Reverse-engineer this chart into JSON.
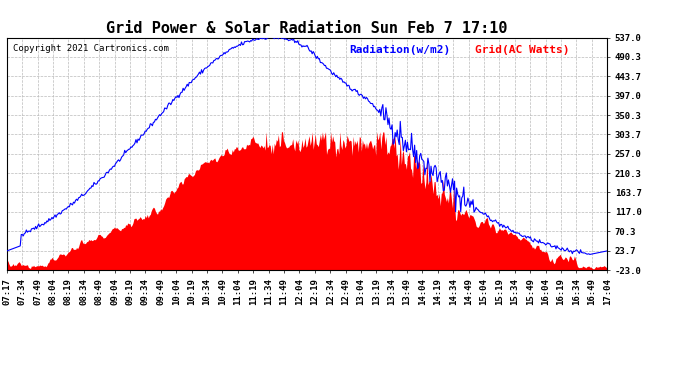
{
  "title": "Grid Power & Solar Radiation Sun Feb 7 17:10",
  "copyright": "Copyright 2021 Cartronics.com",
  "legend_radiation": "Radiation(w/m2)",
  "legend_grid": "Grid(AC Watts)",
  "radiation_color": "blue",
  "grid_color": "red",
  "background_color": "#ffffff",
  "plot_bg_color": "#ffffff",
  "grid_line_color": "#bbbbbb",
  "yticks": [
    537.0,
    490.3,
    443.7,
    397.0,
    350.3,
    303.7,
    257.0,
    210.3,
    163.7,
    117.0,
    70.3,
    23.7,
    -23.0
  ],
  "ylim": [
    -23.0,
    537.0
  ],
  "time_labels": [
    "07:17",
    "07:34",
    "07:49",
    "08:04",
    "08:19",
    "08:34",
    "08:49",
    "09:04",
    "09:19",
    "09:34",
    "09:49",
    "10:04",
    "10:19",
    "10:34",
    "10:49",
    "11:04",
    "11:19",
    "11:34",
    "11:49",
    "12:04",
    "12:19",
    "12:34",
    "12:49",
    "13:04",
    "13:19",
    "13:34",
    "13:49",
    "14:04",
    "14:19",
    "14:34",
    "14:49",
    "15:04",
    "15:19",
    "15:34",
    "15:49",
    "16:04",
    "16:19",
    "16:34",
    "16:49",
    "17:04"
  ],
  "title_fontsize": 11,
  "axis_fontsize": 6.5,
  "copyright_fontsize": 6.5,
  "legend_fontsize": 8
}
